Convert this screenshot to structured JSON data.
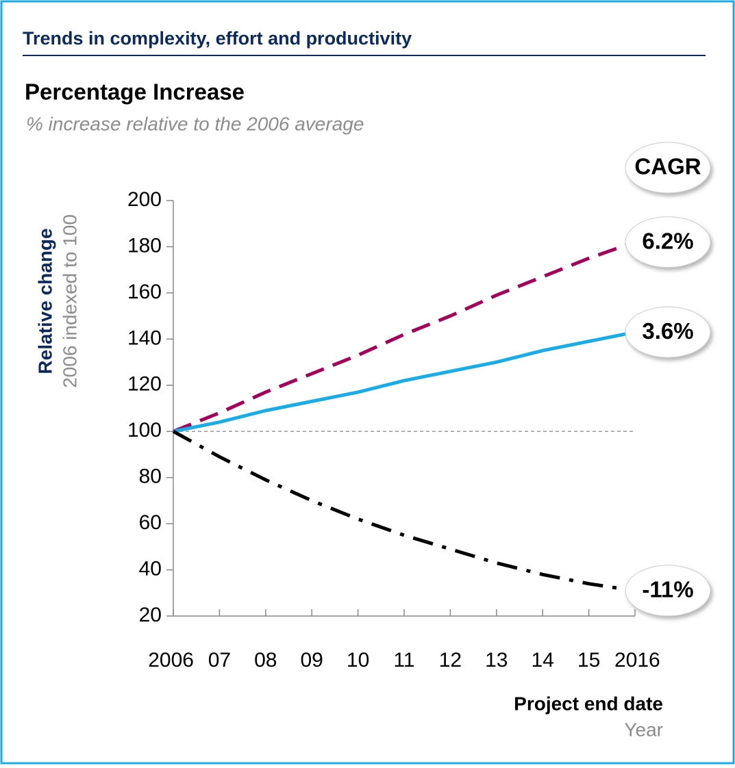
{
  "chart_data": {
    "type": "line",
    "header": "Trends in complexity, effort and productivity",
    "title": "Percentage Increase",
    "subtitle": "% increase relative to the 2006 average",
    "y_label": "Relative change",
    "y_sublabel": "2006 indexed to 100",
    "x_label": "Project end date",
    "x_sublabel": "Year",
    "annotation_title": "CAGR",
    "categories": [
      "2006",
      "07",
      "08",
      "09",
      "10",
      "11",
      "12",
      "13",
      "14",
      "15",
      "2016"
    ],
    "ylim": [
      20,
      200
    ],
    "yticks": [
      20,
      40,
      60,
      80,
      100,
      120,
      140,
      160,
      180,
      200
    ],
    "reference_line": 100,
    "series": [
      {
        "color": "#a3005a",
        "dash": "dashed",
        "label": "6.2%",
        "values": [
          100,
          108,
          117,
          125,
          133,
          142,
          150,
          159,
          167,
          175,
          182
        ]
      },
      {
        "color": "#1aace6",
        "dash": "solid",
        "label": "3.6%",
        "values": [
          100,
          104,
          109,
          113,
          117,
          122,
          126,
          130,
          135,
          139,
          143
        ]
      },
      {
        "color": "#000000",
        "dash": "dashdot",
        "label": "-11%",
        "values": [
          100,
          89,
          79,
          70,
          62,
          55,
          49,
          43,
          38,
          34,
          31
        ]
      }
    ]
  }
}
